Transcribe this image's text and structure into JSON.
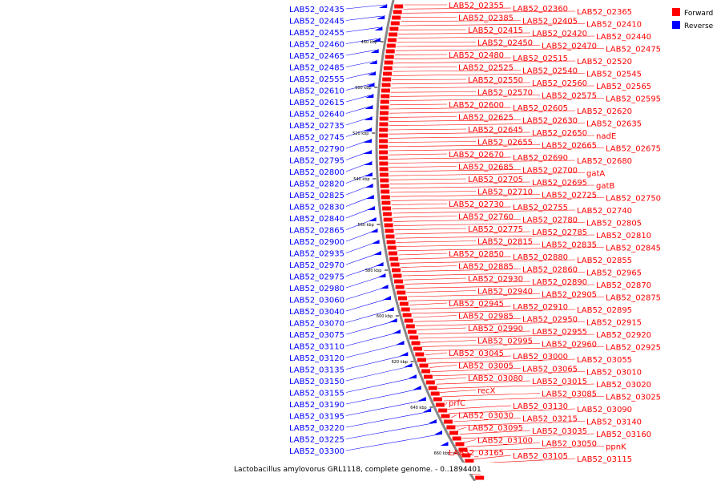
{
  "caption": "Lactobacillus amylovorus GRL1118, complete genome. - 0..1894401",
  "legend": [
    {
      "label": "Forward",
      "color": "#ff0000"
    },
    {
      "label": "Reverse",
      "color": "#0000ff"
    }
  ],
  "colors": {
    "forward": "#ff0000",
    "reverse": "#0000ff",
    "backbone": "#888888"
  },
  "ticks": [
    "480 kbp",
    "500 kbp",
    "520 kbp",
    "540 kbp",
    "560 kbp",
    "580 kbp",
    "600 kbp",
    "620 kbp",
    "640 kbp",
    "660 kbp"
  ],
  "reverse_labels": [
    "LAB52_02435",
    "LAB52_02445",
    "LAB52_02455",
    "LAB52_02460",
    "LAB52_02465",
    "LAB52_02485",
    "LAB52_02555",
    "LAB52_02610",
    "LAB52_02615",
    "LAB52_02640",
    "LAB52_02735",
    "LAB52_02745",
    "LAB52_02790",
    "LAB52_02795",
    "LAB52_02800",
    "LAB52_02820",
    "LAB52_02825",
    "LAB52_02830",
    "LAB52_02840",
    "LAB52_02865",
    "LAB52_02900",
    "LAB52_02935",
    "LAB52_02970",
    "LAB52_02975",
    "LAB52_02980",
    "LAB52_03060",
    "LAB52_03040",
    "LAB52_03070",
    "LAB52_03075",
    "LAB52_03110",
    "LAB52_03120",
    "LAB52_03135",
    "LAB52_03150",
    "LAB52_03155",
    "LAB52_03190",
    "LAB52_03195",
    "LAB52_03220",
    "LAB52_03225",
    "LAB52_03300"
  ],
  "forward_labels": [
    "LAB52_02355",
    "LAB52_02360",
    "LAB52_02365",
    "LAB52_02385",
    "LAB52_02405",
    "LAB52_02410",
    "LAB52_02415",
    "LAB52_02420",
    "LAB52_02440",
    "LAB52_02450",
    "LAB52_02470",
    "LAB52_02475",
    "LAB52_02480",
    "LAB52_02515",
    "LAB52_02520",
    "LAB52_02525",
    "LAB52_02540",
    "LAB52_02545",
    "LAB52_02550",
    "LAB52_02560",
    "LAB52_02565",
    "LAB52_02570",
    "LAB52_02575",
    "LAB52_02595",
    "LAB52_02600",
    "LAB52_02605",
    "LAB52_02620",
    "LAB52_02625",
    "LAB52_02630",
    "LAB52_02635",
    "LAB52_02645",
    "LAB52_02650",
    "nadE",
    "LAB52_02655",
    "LAB52_02665",
    "LAB52_02675",
    "LAB52_02670",
    "LAB52_02690",
    "LAB52_02680",
    "LAB52_02685",
    "LAB52_02700",
    "gatA",
    "LAB52_02705",
    "LAB52_02695",
    "gatB",
    "LAB52_02710",
    "LAB52_02725",
    "LAB52_02750",
    "LAB52_02730",
    "LAB52_02755",
    "LAB52_02740",
    "LAB52_02760",
    "LAB52_02780",
    "LAB52_02805",
    "LAB52_02775",
    "LAB52_02785",
    "LAB52_02810",
    "LAB52_02815",
    "LAB52_02835",
    "LAB52_02845",
    "LAB52_02850",
    "LAB52_02880",
    "LAB52_02855",
    "LAB52_02885",
    "LAB52_02860",
    "LAB52_02965",
    "LAB52_02930",
    "LAB52_02890",
    "LAB52_02870",
    "LAB52_02940",
    "LAB52_02905",
    "LAB52_02875",
    "LAB52_02945",
    "LAB52_02910",
    "LAB52_02895",
    "LAB52_02985",
    "LAB52_02950",
    "LAB52_02915",
    "LAB52_02990",
    "LAB52_02955",
    "LAB52_02920",
    "LAB52_02995",
    "LAB52_02960",
    "LAB52_02925",
    "LAB52_03045",
    "LAB52_03000",
    "LAB52_03055",
    "LAB52_03005",
    "LAB52_03065",
    "LAB52_03010",
    "LAB52_03080",
    "LAB52_03015",
    "LAB52_03020",
    "recX",
    "LAB52_03085",
    "LAB52_03025",
    "prfC",
    "LAB52_03130",
    "LAB52_03090",
    "LAB52_03030",
    "LAB52_03215",
    "LAB52_03140",
    "LAB52_03095",
    "LAB52_03035",
    "LAB52_03160",
    "LAB52_03100",
    "LAB52_03050",
    "ppnK",
    "LAB52_03165",
    "LAB52_03105",
    "LAB52_03115"
  ]
}
